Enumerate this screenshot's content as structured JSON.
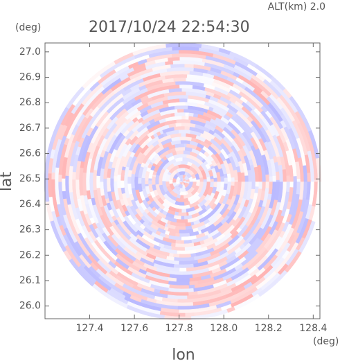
{
  "chart_data": {
    "type": "radar-ppi",
    "title": "2017/10/24 22:54:30",
    "altitude_label": "ALT(km) 2.0",
    "x_label": "lon",
    "y_label": "lat",
    "x_unit": "(deg)",
    "y_unit": "(deg)",
    "xlim": [
      127.2,
      128.43
    ],
    "ylim": [
      25.95,
      27.035
    ],
    "xticks": [
      {
        "value": 127.4,
        "label": "127.4"
      },
      {
        "value": 127.6,
        "label": "127.6"
      },
      {
        "value": 127.8,
        "label": "127.8"
      },
      {
        "value": 128,
        "label": "128.0"
      },
      {
        "value": 128.2,
        "label": "128.2"
      },
      {
        "value": 128.4,
        "label": "128.4"
      }
    ],
    "yticks": [
      {
        "value": 26,
        "label": "26.0"
      },
      26.1,
      26.2,
      26.3,
      26.4,
      26.5,
      26.6,
      26.7,
      26.8,
      26.9,
      {
        "value": 27,
        "label": "27.0"
      }
    ]
  }
}
